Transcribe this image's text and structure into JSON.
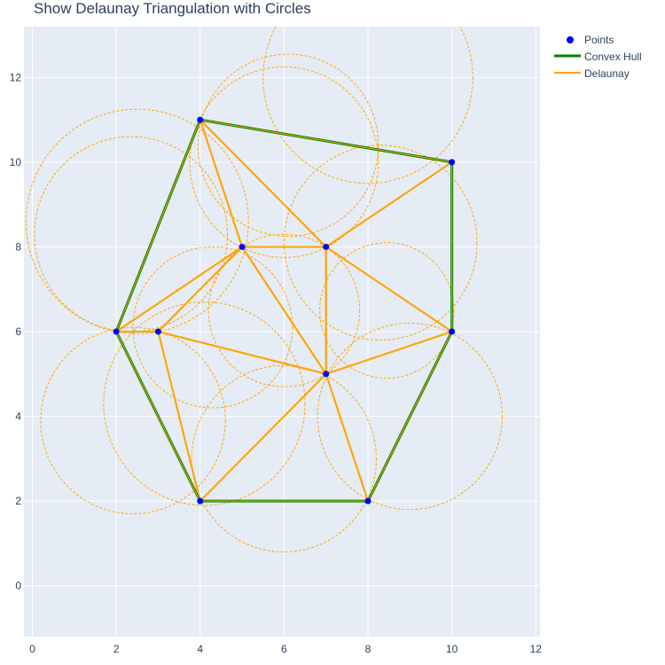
{
  "chart_data": {
    "type": "scatter",
    "title": "Show Delaunay Triangulation with Circles",
    "xlabel": "",
    "ylabel": "",
    "xlim": [
      -0.2,
      12.1
    ],
    "ylim": [
      -1.2,
      13.2
    ],
    "x_ticks": [
      0,
      2,
      4,
      6,
      8,
      10,
      12
    ],
    "y_ticks": [
      0,
      2,
      4,
      6,
      8,
      10,
      12
    ],
    "grid": true,
    "legend_position": "top-right",
    "colors": {
      "background": "#e5ecf6",
      "grid": "#ffffff",
      "points": "#0000ff",
      "hull": "#008000",
      "delaunay": "#ffa500",
      "circles": "#ffa500"
    },
    "series": [
      {
        "name": "Points",
        "mode": "markers",
        "points": [
          [
            4,
            11
          ],
          [
            10,
            10
          ],
          [
            5,
            8
          ],
          [
            7,
            8
          ],
          [
            2,
            6
          ],
          [
            3,
            6
          ],
          [
            10,
            6
          ],
          [
            7,
            5
          ],
          [
            4,
            2
          ],
          [
            8,
            2
          ]
        ]
      },
      {
        "name": "Convex Hull",
        "mode": "lines",
        "points": [
          [
            4,
            11
          ],
          [
            10,
            10
          ],
          [
            10,
            6
          ],
          [
            8,
            2
          ],
          [
            4,
            2
          ],
          [
            2,
            6
          ],
          [
            4,
            11
          ]
        ]
      },
      {
        "name": "Delaunay",
        "mode": "lines",
        "triangles": [
          [
            [
              4,
              11
            ],
            [
              10,
              10
            ],
            [
              7,
              8
            ]
          ],
          [
            [
              4,
              11
            ],
            [
              7,
              8
            ],
            [
              5,
              8
            ]
          ],
          [
            [
              4,
              11
            ],
            [
              5,
              8
            ],
            [
              2,
              6
            ]
          ],
          [
            [
              5,
              8
            ],
            [
              3,
              6
            ],
            [
              2,
              6
            ]
          ],
          [
            [
              5,
              8
            ],
            [
              7,
              8
            ],
            [
              7,
              5
            ]
          ],
          [
            [
              5,
              8
            ],
            [
              7,
              5
            ],
            [
              3,
              6
            ]
          ],
          [
            [
              7,
              8
            ],
            [
              10,
              10
            ],
            [
              10,
              6
            ]
          ],
          [
            [
              7,
              8
            ],
            [
              10,
              6
            ],
            [
              7,
              5
            ]
          ],
          [
            [
              3,
              6
            ],
            [
              7,
              5
            ],
            [
              4,
              2
            ]
          ],
          [
            [
              2,
              6
            ],
            [
              3,
              6
            ],
            [
              4,
              2
            ]
          ],
          [
            [
              7,
              5
            ],
            [
              10,
              6
            ],
            [
              8,
              2
            ]
          ],
          [
            [
              7,
              5
            ],
            [
              8,
              2
            ],
            [
              4,
              2
            ]
          ]
        ]
      }
    ],
    "circumcircles": [
      {
        "center": [
          6.1,
          10.4
        ],
        "radius": 2.15
      },
      {
        "center": [
          6.0,
          10.0
        ],
        "radius": 2.25
      },
      {
        "center": [
          2.5,
          8.6
        ],
        "radius": 2.65
      },
      {
        "center": [
          2.35,
          8.3
        ],
        "radius": 2.3
      },
      {
        "center": [
          6.0,
          6.5
        ],
        "radius": 1.8
      },
      {
        "center": [
          4.3,
          6.1
        ],
        "radius": 1.9
      },
      {
        "center": [
          8.3,
          8.1
        ],
        "radius": 2.3
      },
      {
        "center": [
          8.45,
          6.5
        ],
        "radius": 1.6
      },
      {
        "center": [
          4.1,
          4.3
        ],
        "radius": 2.4
      },
      {
        "center": [
          2.4,
          3.9
        ],
        "radius": 2.2
      },
      {
        "center": [
          9.0,
          4.0
        ],
        "radius": 2.2
      },
      {
        "center": [
          6.0,
          3.0
        ],
        "radius": 2.2
      },
      {
        "center": [
          8.0,
          12.0
        ],
        "radius": 2.5
      }
    ]
  }
}
